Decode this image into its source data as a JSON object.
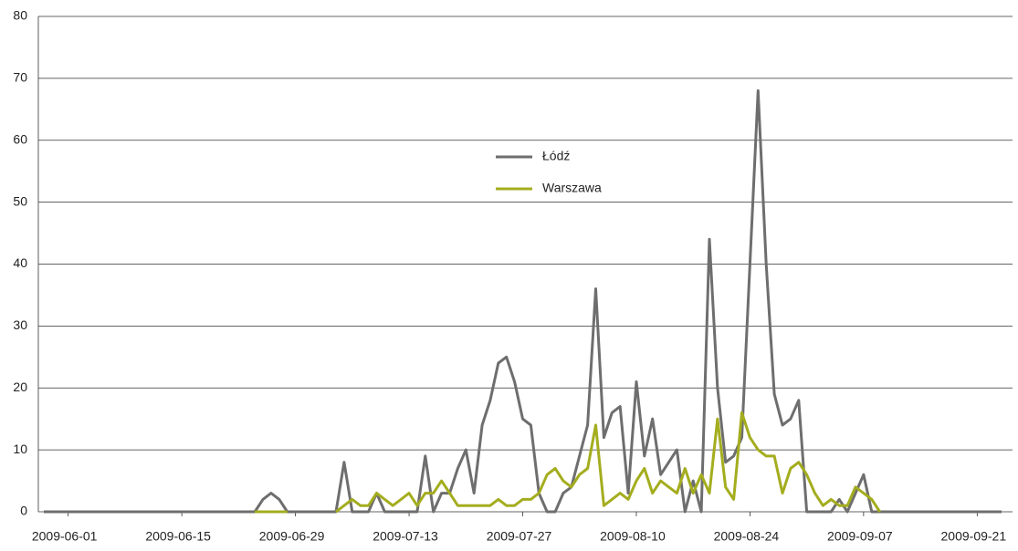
{
  "chart_data": {
    "type": "line",
    "x": [
      "2009-05-29",
      "2009-05-30",
      "2009-05-31",
      "2009-06-01",
      "2009-06-02",
      "2009-06-03",
      "2009-06-04",
      "2009-06-05",
      "2009-06-06",
      "2009-06-07",
      "2009-06-08",
      "2009-06-09",
      "2009-06-10",
      "2009-06-11",
      "2009-06-12",
      "2009-06-13",
      "2009-06-14",
      "2009-06-15",
      "2009-06-16",
      "2009-06-17",
      "2009-06-18",
      "2009-06-19",
      "2009-06-20",
      "2009-06-21",
      "2009-06-22",
      "2009-06-23",
      "2009-06-24",
      "2009-06-25",
      "2009-06-26",
      "2009-06-27",
      "2009-06-28",
      "2009-06-29",
      "2009-06-30",
      "2009-07-01",
      "2009-07-02",
      "2009-07-03",
      "2009-07-04",
      "2009-07-05",
      "2009-07-06",
      "2009-07-07",
      "2009-07-08",
      "2009-07-09",
      "2009-07-10",
      "2009-07-11",
      "2009-07-12",
      "2009-07-13",
      "2009-07-14",
      "2009-07-15",
      "2009-07-16",
      "2009-07-17",
      "2009-07-18",
      "2009-07-19",
      "2009-07-20",
      "2009-07-21",
      "2009-07-22",
      "2009-07-23",
      "2009-07-24",
      "2009-07-25",
      "2009-07-26",
      "2009-07-27",
      "2009-07-28",
      "2009-07-29",
      "2009-07-30",
      "2009-07-31",
      "2009-08-01",
      "2009-08-02",
      "2009-08-03",
      "2009-08-04",
      "2009-08-05",
      "2009-08-06",
      "2009-08-07",
      "2009-08-08",
      "2009-08-09",
      "2009-08-10",
      "2009-08-11",
      "2009-08-12",
      "2009-08-13",
      "2009-08-14",
      "2009-08-15",
      "2009-08-16",
      "2009-08-17",
      "2009-08-18",
      "2009-08-19",
      "2009-08-20",
      "2009-08-21",
      "2009-08-22",
      "2009-08-23",
      "2009-08-24",
      "2009-08-25",
      "2009-08-26",
      "2009-08-27",
      "2009-08-28",
      "2009-08-29",
      "2009-08-30",
      "2009-08-31",
      "2009-09-01",
      "2009-09-02",
      "2009-09-03",
      "2009-09-04",
      "2009-09-05",
      "2009-09-06",
      "2009-09-07",
      "2009-09-08",
      "2009-09-09",
      "2009-09-10",
      "2009-09-11",
      "2009-09-12",
      "2009-09-13",
      "2009-09-14",
      "2009-09-15",
      "2009-09-16",
      "2009-09-17",
      "2009-09-18",
      "2009-09-19",
      "2009-09-20",
      "2009-09-21",
      "2009-09-22",
      "2009-09-23",
      "2009-09-24"
    ],
    "series": [
      {
        "name": "Łódź",
        "color": "#6e6e6e",
        "values": [
          0,
          0,
          0,
          0,
          0,
          0,
          0,
          0,
          0,
          0,
          0,
          0,
          0,
          0,
          0,
          0,
          0,
          0,
          0,
          0,
          0,
          0,
          0,
          0,
          0,
          0,
          0,
          2,
          3,
          2,
          0,
          0,
          0,
          0,
          0,
          0,
          0,
          8,
          0,
          0,
          0,
          3,
          0,
          0,
          0,
          0,
          0,
          9,
          0,
          3,
          3,
          7,
          10,
          3,
          14,
          18,
          24,
          25,
          21,
          15,
          14,
          3,
          0,
          0,
          3,
          4,
          9,
          14,
          36,
          12,
          16,
          17,
          3,
          21,
          9,
          15,
          6,
          8,
          10,
          0,
          5,
          0,
          44,
          20,
          8,
          9,
          12,
          40,
          68,
          40,
          19,
          14,
          15,
          18,
          0,
          0,
          0,
          0,
          2,
          0,
          3,
          6,
          0,
          0,
          0,
          0,
          0,
          0,
          0,
          0,
          0,
          0,
          0,
          0,
          0,
          0,
          0,
          0,
          0
        ]
      },
      {
        "name": "Warszawa",
        "color": "#a4ad1e",
        "values": [
          null,
          null,
          null,
          null,
          null,
          null,
          null,
          null,
          null,
          null,
          null,
          null,
          null,
          null,
          null,
          null,
          null,
          null,
          null,
          null,
          null,
          null,
          null,
          null,
          null,
          null,
          0,
          0,
          0,
          0,
          0,
          null,
          null,
          null,
          null,
          null,
          0,
          1,
          2,
          1,
          1,
          3,
          2,
          1,
          2,
          3,
          1,
          3,
          3,
          5,
          3,
          1,
          1,
          1,
          1,
          1,
          2,
          1,
          1,
          2,
          2,
          3,
          6,
          7,
          5,
          4,
          6,
          7,
          14,
          1,
          2,
          3,
          2,
          5,
          7,
          3,
          5,
          4,
          3,
          7,
          3,
          6,
          3,
          15,
          4,
          2,
          16,
          12,
          10,
          9,
          9,
          3,
          7,
          8,
          6,
          3,
          1,
          2,
          1,
          1,
          4,
          3,
          2,
          0,
          null,
          null,
          null,
          null,
          null,
          null,
          null,
          null,
          null,
          null,
          null,
          null,
          null,
          null,
          null
        ]
      }
    ],
    "xlim": [
      "2009-05-29",
      "2009-09-24"
    ],
    "xticks": [
      "2009-06-01",
      "2009-06-15",
      "2009-06-29",
      "2009-07-13",
      "2009-07-27",
      "2009-08-10",
      "2009-08-24",
      "2009-09-07",
      "2009-09-21"
    ],
    "ylim": [
      0,
      80
    ],
    "yticks": [
      0,
      10,
      20,
      30,
      40,
      50,
      60,
      70,
      80
    ],
    "grid": true
  }
}
